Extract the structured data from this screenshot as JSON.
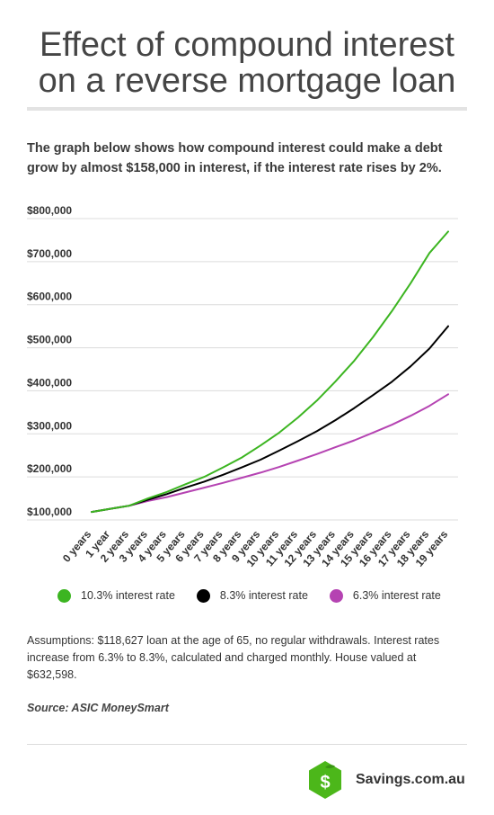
{
  "title_line1": "Effect of compound interest",
  "title_line2": "on a reverse mortgage loan",
  "intro": "The graph below shows how compound interest could make a debt grow by almost $158,000 in interest, if the interest rate rises by 2%.",
  "assumptions": "Assumptions: $118,627 loan at the age of 65, no regular withdrawals. Interest rates increase from 6.3% to 8.3%, calculated and charged monthly. House valued at $632,598.",
  "source": "Source: ASIC MoneySmart",
  "brand": {
    "name": "Savings.com.au",
    "logo_letter": "$",
    "logo_color": "#4cb71a"
  },
  "chart_data": {
    "type": "line",
    "categories": [
      "0 years",
      "1 year",
      "2 years",
      "3 years",
      "4 years",
      "5 years",
      "6 years",
      "7 years",
      "8 years",
      "9 years",
      "10 years",
      "11 years",
      "12 years",
      "13 years",
      "14 years",
      "15 years",
      "16 years",
      "17 years",
      "18 years",
      "19 years"
    ],
    "yticks": [
      "$100,000",
      "$200,000",
      "$300,000",
      "$400,000",
      "$500,000",
      "$600,000",
      "$700,000",
      "$800,000"
    ],
    "ylim": [
      100000,
      800000
    ],
    "grid": true,
    "legend_position": "bottom",
    "series": [
      {
        "name": "10.3% interest rate",
        "color": "#3cb521",
        "values": [
          118627,
          126000,
          133000,
          150000,
          165000,
          183000,
          200000,
          222000,
          245000,
          273000,
          303000,
          338000,
          377000,
          422000,
          470000,
          525000,
          585000,
          650000,
          720000,
          770000
        ]
      },
      {
        "name": "8.3% interest rate",
        "color": "#000000",
        "values": [
          118627,
          126000,
          133000,
          147000,
          160000,
          175000,
          189000,
          205000,
          222000,
          240000,
          261000,
          283000,
          306000,
          332000,
          360000,
          390000,
          421000,
          457000,
          498000,
          550000
        ]
      },
      {
        "name": "6.3% interest rate",
        "color": "#b543b2",
        "values": [
          118627,
          126000,
          133000,
          144000,
          153000,
          164000,
          175000,
          186000,
          198000,
          210000,
          223000,
          238000,
          253000,
          269000,
          285000,
          303000,
          321000,
          342000,
          365000,
          392000
        ]
      }
    ]
  }
}
